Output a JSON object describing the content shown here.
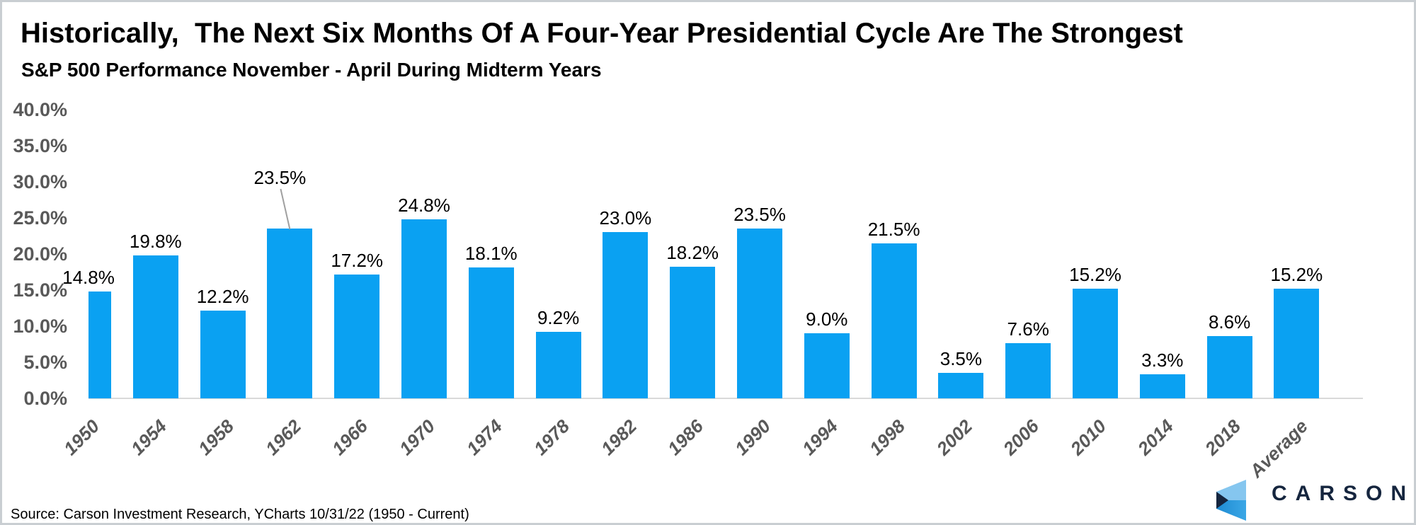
{
  "chart_data": {
    "type": "bar",
    "title": "Historically,  The Next Six Months Of A Four-Year Presidential Cycle Are The Strongest",
    "subtitle": "S&P 500 Performance November - April During Midterm Years",
    "categories": [
      "1950",
      "1954",
      "1958",
      "1962",
      "1966",
      "1970",
      "1974",
      "1978",
      "1982",
      "1986",
      "1990",
      "1994",
      "1998",
      "2002",
      "2006",
      "2010",
      "2014",
      "2018",
      "Average"
    ],
    "values": [
      14.8,
      19.8,
      12.2,
      23.5,
      17.2,
      24.8,
      18.1,
      9.2,
      23.0,
      18.2,
      23.5,
      9.0,
      21.5,
      3.5,
      7.6,
      15.2,
      3.3,
      8.6,
      15.2
    ],
    "value_label_format": "percent_one_decimal",
    "ylim": [
      0,
      40
    ],
    "ytick_step": 5,
    "ytick_labels": [
      "0.0%",
      "5.0%",
      "10.0%",
      "15.0%",
      "20.0%",
      "25.0%",
      "30.0%",
      "35.0%",
      "40.0%"
    ],
    "xlabel": "",
    "ylabel": "",
    "grid": false,
    "legend": "none",
    "bar_color": "#0aa1f2",
    "axis_label_color": "#595959",
    "baseline_color": "#d9d9d9",
    "callout": {
      "index": 3,
      "dx": -14,
      "raise": 52,
      "line_color": "#a0a0a0"
    }
  },
  "source": {
    "text": "Source: Carson Investment Research, YCharts 10/31/22 (1950 - Current)"
  },
  "logo": {
    "wordmark": "CARSON",
    "navy": "#15253e",
    "light_blue": "#85c6ef",
    "mid_blue_dark": "#1e8bd2",
    "mid_blue_light": "#3ba7e6"
  }
}
